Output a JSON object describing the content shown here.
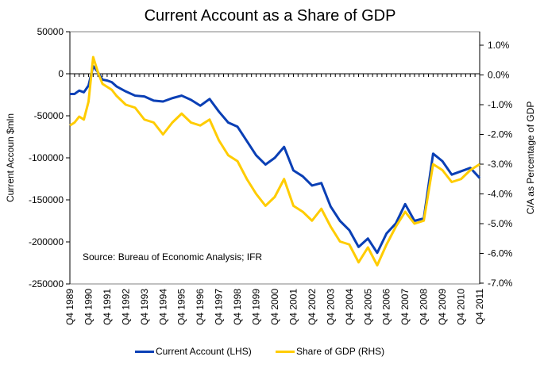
{
  "chart_data": {
    "type": "line",
    "title": "Current Account as a Share of GDP",
    "ylabel_left": "Current Accoun $mln",
    "ylabel_right": "C/A as Percentage of GDP",
    "xlabel": "",
    "ylim_left": [
      -250000,
      50000
    ],
    "ylim_right": [
      -7.0,
      1.5
    ],
    "left_ticks": [
      "50000",
      "0",
      "-50000",
      "-100000",
      "-150000",
      "-200000",
      "-250000"
    ],
    "left_tick_values": [
      50000,
      0,
      -50000,
      -100000,
      -150000,
      -200000,
      -250000
    ],
    "right_ticks": [
      "1.0%",
      "0.0%",
      "-1.0%",
      "-2.0%",
      "-3.0%",
      "-4.0%",
      "-5.0%",
      "-6.0%",
      "-7.0%"
    ],
    "right_tick_values": [
      1,
      0,
      -1,
      -2,
      -3,
      -4,
      -5,
      -6,
      -7
    ],
    "x_tick_labels": [
      "Q4 1989",
      "Q4 1990",
      "Q4 1991",
      "Q4 1992",
      "Q4 1993",
      "Q4 1994",
      "Q4 1995",
      "Q4 1996",
      "Q4 1997",
      "Q4 1998",
      "Q4 1999",
      "Q4 2000",
      "Q4 2001",
      "Q4 2002",
      "Q4 2003",
      "Q4 2004",
      "Q4 2005",
      "Q4 2006",
      "Q4 2007",
      "Q4 2008",
      "Q4 2009",
      "Q4 2010",
      "Q4 2011"
    ],
    "annotation": "Source:  Bureau of Economic Analysis; IFR",
    "legend_position": "bottom",
    "series": [
      {
        "name": "Current Account (LHS)",
        "axis": "left",
        "color": "#0a3fb5",
        "keypoints_quarter_index": [
          0,
          1,
          2,
          3,
          4,
          5,
          6,
          7,
          8,
          9,
          10,
          12,
          14,
          16,
          18,
          20,
          22,
          24,
          26,
          28,
          30,
          32,
          34,
          36,
          38,
          40,
          42,
          44,
          46,
          48,
          50,
          52,
          54,
          56,
          58,
          60,
          62,
          64,
          66,
          68,
          70,
          72,
          74,
          76,
          78,
          80,
          82,
          84,
          86,
          88
        ],
        "values": [
          -24000,
          -24000,
          -20000,
          -22000,
          -14000,
          9000,
          2000,
          -7000,
          -8000,
          -10000,
          -15000,
          -21000,
          -26000,
          -27000,
          -32000,
          -33000,
          -29000,
          -26000,
          -31000,
          -38000,
          -30000,
          -45000,
          -58000,
          -63000,
          -80000,
          -97000,
          -108000,
          -100000,
          -87000,
          -115000,
          -122000,
          -133000,
          -130000,
          -158000,
          -175000,
          -186000,
          -206000,
          -196000,
          -213000,
          -190000,
          -178000,
          -155000,
          -175000,
          -172000,
          -95000,
          -104000,
          -120000,
          -116000,
          -112000,
          -124000
        ]
      },
      {
        "name": "Share of GDP (RHS)",
        "axis": "right",
        "color": "#ffcc00",
        "keypoints_quarter_index": [
          0,
          1,
          2,
          3,
          4,
          5,
          6,
          7,
          8,
          9,
          10,
          12,
          14,
          16,
          18,
          20,
          22,
          24,
          26,
          28,
          30,
          32,
          34,
          36,
          38,
          40,
          42,
          44,
          46,
          48,
          50,
          52,
          54,
          56,
          58,
          60,
          62,
          64,
          66,
          68,
          70,
          72,
          74,
          76,
          78,
          80,
          82,
          84,
          86,
          88
        ],
        "values": [
          -1.7,
          -1.6,
          -1.4,
          -1.5,
          -0.9,
          0.6,
          0.1,
          -0.3,
          -0.4,
          -0.5,
          -0.7,
          -1.0,
          -1.1,
          -1.5,
          -1.6,
          -2.0,
          -1.6,
          -1.3,
          -1.6,
          -1.7,
          -1.5,
          -2.2,
          -2.7,
          -2.9,
          -3.5,
          -4.0,
          -4.4,
          -4.1,
          -3.5,
          -4.4,
          -4.6,
          -4.9,
          -4.5,
          -5.1,
          -5.6,
          -5.7,
          -6.3,
          -5.8,
          -6.4,
          -5.7,
          -5.1,
          -4.6,
          -5.0,
          -4.9,
          -3.0,
          -3.2,
          -3.6,
          -3.5,
          -3.2,
          -3.0
        ]
      }
    ]
  }
}
